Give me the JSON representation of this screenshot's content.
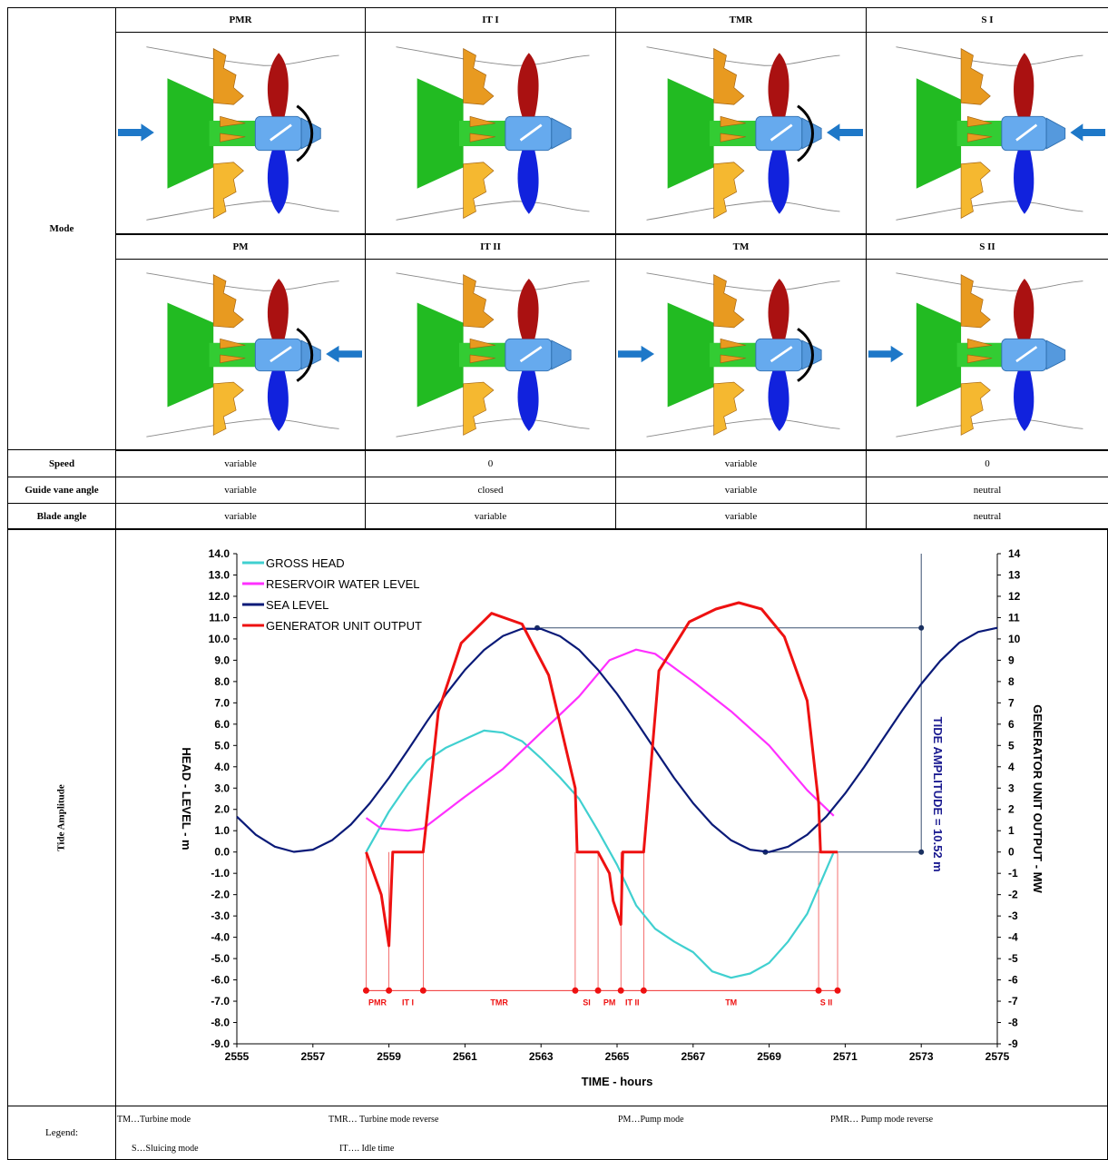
{
  "table": {
    "mode_label": "Mode",
    "modes_row1": [
      "PMR",
      "IT I",
      "TMR",
      "S I"
    ],
    "modes_row2": [
      "PM",
      "IT II",
      "TM",
      "S II"
    ],
    "rows": [
      [
        "Speed",
        "variable",
        "0",
        "variable",
        "0"
      ],
      [
        "Guide vane angle",
        "variable",
        "closed",
        "variable",
        "neutral"
      ],
      [
        "Blade angle",
        "variable",
        "variable",
        "variable",
        "neutral"
      ]
    ],
    "chart_row_label": "Tide Amplitude",
    "legend_label": "Legend:",
    "legend_items": [
      "TM…Turbine mode",
      "TMR… Turbine mode reverse",
      "PM…Pump mode",
      "PMR… Pump mode reverse",
      "S…Sluicing mode",
      "IT…. Idle time"
    ]
  },
  "chart_data": {
    "type": "line",
    "x_label": "TIME  -  hours",
    "y_label": "HEAD  -  LEVEL  -  m",
    "y2_label": "GENERATOR UNIT OUTPUT  -  MW",
    "xlim": [
      2555,
      2575
    ],
    "xticks": [
      2555,
      2557,
      2559,
      2561,
      2563,
      2565,
      2567,
      2569,
      2571,
      2573,
      2575
    ],
    "ylim": [
      -9,
      14
    ],
    "yticks": [
      {
        "value": 14,
        "label": "14.0"
      },
      {
        "value": 13,
        "label": "13.0"
      },
      {
        "value": 12,
        "label": "12.0"
      },
      {
        "value": 11,
        "label": "11.0"
      },
      {
        "value": 10,
        "label": "10.0"
      },
      {
        "value": 9,
        "label": "9.0"
      },
      {
        "value": 8,
        "label": "8.0"
      },
      {
        "value": 7,
        "label": "7.0"
      },
      {
        "value": 6,
        "label": "6.0"
      },
      {
        "value": 5,
        "label": "5.0"
      },
      {
        "value": 4,
        "label": "4.0"
      },
      {
        "value": 3,
        "label": "3.0"
      },
      {
        "value": 2,
        "label": "2.0"
      },
      {
        "value": 1,
        "label": "1.0"
      },
      {
        "value": 0,
        "label": "0.0"
      },
      {
        "value": -1,
        "label": "-1.0"
      },
      {
        "value": -2,
        "label": "-2.0"
      },
      {
        "value": -3,
        "label": "-3.0"
      },
      {
        "value": -4,
        "label": "-4.0"
      },
      {
        "value": -5,
        "label": "-5.0"
      },
      {
        "value": -6,
        "label": "-6.0"
      },
      {
        "value": -7,
        "label": "-7.0"
      },
      {
        "value": -8,
        "label": "-8.0"
      },
      {
        "value": -9,
        "label": "-9.0"
      }
    ],
    "y2lim": [
      -9,
      14
    ],
    "y2ticks": [
      14,
      13,
      12,
      11,
      10,
      9,
      8,
      7,
      6,
      5,
      4,
      3,
      2,
      1,
      0,
      -1,
      -2,
      -3,
      -4,
      -5,
      -6,
      -7,
      -8,
      -9
    ],
    "legend": "top-left",
    "series": [
      {
        "name": "GROSS HEAD",
        "color": "#40d0d0",
        "x": [
          2558.4,
          2559,
          2559.5,
          2560,
          2560.5,
          2561,
          2561.5,
          2562,
          2562.5,
          2563,
          2563.5,
          2564,
          2564.5,
          2565,
          2565.5,
          2566,
          2566.5,
          2567,
          2567.5,
          2568,
          2568.5,
          2569,
          2569.5,
          2570,
          2570.7
        ],
        "values": [
          0,
          1.9,
          3.2,
          4.3,
          4.9,
          5.3,
          5.7,
          5.6,
          5.2,
          4.4,
          3.5,
          2.5,
          1.0,
          -0.6,
          -2.5,
          -3.6,
          -4.2,
          -4.7,
          -5.6,
          -5.9,
          -5.7,
          -5.2,
          -4.2,
          -2.9,
          0
        ]
      },
      {
        "name": "RESERVOIR WATER LEVEL",
        "color": "#ff30ff",
        "x": [
          2558.4,
          2558.8,
          2559.5,
          2559.9,
          2561,
          2562,
          2563,
          2564,
          2564.8,
          2565.5,
          2566,
          2567,
          2568,
          2569,
          2570,
          2570.7
        ],
        "values": [
          1.6,
          1.1,
          1.0,
          1.1,
          2.6,
          3.9,
          5.6,
          7.3,
          9.0,
          9.5,
          9.3,
          8.0,
          6.6,
          5.0,
          2.9,
          1.7
        ]
      },
      {
        "name": "SEA LEVEL",
        "color": "#0a1a78",
        "x": [
          2555,
          2555.5,
          2556,
          2556.5,
          2557,
          2557.5,
          2558,
          2558.5,
          2559,
          2559.5,
          2560,
          2560.5,
          2561,
          2561.5,
          2562,
          2562.5,
          2563,
          2563.5,
          2564,
          2564.5,
          2565,
          2565.5,
          2566,
          2566.5,
          2567,
          2567.5,
          2568,
          2568.5,
          2569,
          2569.5,
          2570,
          2570.5,
          2571,
          2571.5,
          2572,
          2572.5,
          2573,
          2573.5,
          2574,
          2574.5,
          2575
        ],
        "values": [
          1.66,
          0.81,
          0.25,
          0.01,
          0.11,
          0.55,
          1.29,
          2.29,
          3.48,
          4.79,
          6.13,
          7.41,
          8.55,
          9.48,
          10.14,
          10.48,
          10.47,
          10.13,
          9.49,
          8.55,
          7.42,
          6.13,
          4.8,
          3.48,
          2.29,
          1.29,
          0.55,
          0.11,
          0.0,
          0.25,
          0.81,
          1.66,
          2.75,
          3.99,
          5.32,
          6.65,
          7.89,
          8.97,
          9.82,
          10.33,
          10.52
        ]
      },
      {
        "name": "GENERATOR UNIT OUTPUT",
        "color": "#ee1111",
        "axis": "y2",
        "x": [
          2558.4,
          2558.8,
          2559,
          2559.1,
          2559.9,
          2560.3,
          2560.9,
          2561.7,
          2562.5,
          2563.2,
          2563.9,
          2563.95,
          2564.5,
          2564.8,
          2564.9,
          2565.1,
          2565.15,
          2565.7,
          2566.1,
          2566.9,
          2567.6,
          2568.2,
          2568.8,
          2569.4,
          2570.0,
          2570.3,
          2570.35,
          2570.8
        ],
        "values": [
          0,
          -2,
          -4.4,
          0,
          0,
          6.6,
          9.8,
          11.2,
          10.7,
          8.3,
          3.0,
          0,
          0,
          -1,
          -2.3,
          -3.4,
          0,
          0,
          8.5,
          10.8,
          11.4,
          11.7,
          11.4,
          10.1,
          7.1,
          2.3,
          0,
          0
        ]
      }
    ],
    "mode_markers": {
      "x": [
        2558.4,
        2559,
        2559.9,
        2563.9,
        2564.5,
        2565.1,
        2565.7,
        2570.3,
        2570.8
      ],
      "y": -6.5
    },
    "mode_labels": [
      {
        "text": "PMR",
        "x": 2558.7
      },
      {
        "text": "IT I",
        "x": 2559.5
      },
      {
        "text": "TMR",
        "x": 2561.9
      },
      {
        "text": "SI",
        "x": 2564.2
      },
      {
        "text": "PM",
        "x": 2564.8
      },
      {
        "text": "IT II",
        "x": 2565.4
      },
      {
        "text": "TM",
        "x": 2568.0
      },
      {
        "text": "S II",
        "x": 2570.5
      }
    ],
    "tide_amplitude": {
      "label": "TIDE AMPLITUDE  = 10.52 m",
      "value": 10.52,
      "x": 2573,
      "peak_x": 2562.9,
      "trough_x": 2568.9
    }
  }
}
